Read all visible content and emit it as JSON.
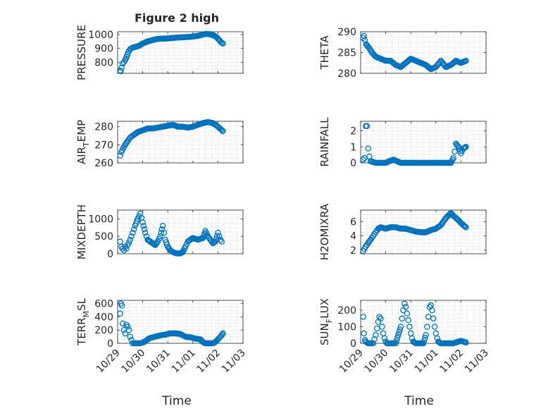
{
  "chart_data": {
    "type": "scatter",
    "title": "Figure 2 high",
    "xlabel": "Time",
    "x_tick_labels": [
      "10/29",
      "10/30",
      "10/31",
      "11/01",
      "11/02",
      "11/03"
    ],
    "xlim": [
      0,
      5
    ],
    "marker_color": "#0072bd",
    "panels": [
      {
        "id": "pressure",
        "ylabel": "PRESSURE",
        "ylabel_sub": "",
        "ylim": [
          720,
          1020
        ],
        "yticks": [
          "800",
          "900",
          "1000"
        ],
        "ytick_values": [
          800,
          900,
          1000
        ],
        "x": [
          0.1,
          0.12,
          0.16,
          0.2,
          0.25,
          0.3,
          0.36,
          0.42,
          0.5,
          0.6,
          0.7,
          0.85,
          1.0,
          1.2,
          1.4,
          1.6,
          1.8,
          2.0,
          2.2,
          2.4,
          2.6,
          2.8,
          3.0,
          3.2,
          3.4,
          3.55,
          3.65,
          3.75,
          3.85,
          3.95,
          4.05,
          4.12,
          4.2
        ],
        "y": [
          740,
          735,
          760,
          790,
          800,
          815,
          840,
          870,
          895,
          905,
          910,
          918,
          935,
          950,
          960,
          968,
          970,
          972,
          975,
          978,
          980,
          982,
          985,
          990,
          1000,
          1005,
          1003,
          998,
          992,
          980,
          960,
          945,
          935
        ]
      },
      {
        "id": "theta",
        "ylabel": "THETA",
        "ylabel_sub": "",
        "ylim": [
          280,
          290
        ],
        "yticks": [
          "280",
          "285",
          "290"
        ],
        "ytick_values": [
          280,
          285,
          290
        ],
        "x": [
          0.1,
          0.13,
          0.17,
          0.22,
          0.28,
          0.35,
          0.45,
          0.6,
          0.8,
          1.0,
          1.2,
          1.4,
          1.6,
          1.8,
          2.0,
          2.2,
          2.4,
          2.6,
          2.8,
          3.0,
          3.2,
          3.4,
          3.6,
          3.8,
          4.0,
          4.2
        ],
        "y": [
          288.5,
          289.0,
          288.0,
          287.0,
          286.5,
          286.0,
          285.0,
          284.0,
          283.5,
          283.0,
          283.0,
          282.0,
          281.5,
          282.5,
          283.5,
          283.0,
          282.5,
          282.0,
          281.0,
          281.5,
          283.0,
          281.5,
          282.0,
          283.0,
          282.5,
          283.0
        ]
      },
      {
        "id": "air_temp",
        "ylabel": "AIR",
        "ylabel_sub": "T",
        "ylabel_tail": "EMP",
        "ylim": [
          260,
          283
        ],
        "yticks": [
          "260",
          "270",
          "280"
        ],
        "ytick_values": [
          260,
          270,
          280
        ],
        "x": [
          0.1,
          0.15,
          0.22,
          0.3,
          0.4,
          0.5,
          0.6,
          0.8,
          1.0,
          1.2,
          1.4,
          1.6,
          1.8,
          2.0,
          2.2,
          2.4,
          2.6,
          2.8,
          3.0,
          3.2,
          3.4,
          3.6,
          3.8,
          4.0,
          4.2
        ],
        "y": [
          264,
          266,
          268,
          270,
          272,
          274,
          275,
          277,
          278,
          279,
          279,
          279.5,
          280,
          280.5,
          281,
          280,
          280,
          279.5,
          280,
          281,
          282,
          282.5,
          282,
          280,
          277.5
        ]
      },
      {
        "id": "rainfall",
        "ylabel": "RAINFALL",
        "ylabel_sub": "",
        "ylim": [
          0,
          2.6
        ],
        "yticks": [
          "0",
          "1",
          "2"
        ],
        "ytick_values": [
          0,
          1,
          2
        ],
        "x": [
          0.1,
          0.15,
          0.2,
          0.25,
          0.3,
          0.35,
          0.4,
          0.6,
          0.8,
          1.0,
          1.3,
          1.6,
          1.9,
          2.2,
          2.5,
          2.8,
          3.1,
          3.4,
          3.6,
          3.7,
          3.75,
          3.8,
          3.9,
          4.0,
          4.1,
          4.2
        ],
        "y": [
          0.2,
          0.3,
          2.3,
          2.3,
          0.9,
          0.4,
          0.1,
          0.0,
          0.0,
          0.0,
          0.2,
          0.0,
          0.0,
          0.0,
          0.0,
          0.0,
          0.0,
          0.0,
          0.0,
          0.3,
          0.7,
          1.2,
          1.0,
          0.6,
          0.9,
          1.0
        ]
      },
      {
        "id": "mixdepth",
        "ylabel": "MIXDEPTH",
        "ylabel_sub": "",
        "ylim": [
          0,
          1250
        ],
        "yticks": [
          "0",
          "500",
          "1000"
        ],
        "ytick_values": [
          0,
          500,
          1000
        ],
        "x": [
          0.1,
          0.15,
          0.2,
          0.25,
          0.3,
          0.35,
          0.4,
          0.5,
          0.6,
          0.7,
          0.8,
          0.9,
          1.0,
          1.1,
          1.2,
          1.3,
          1.4,
          1.5,
          1.6,
          1.7,
          1.8,
          1.9,
          2.0,
          2.1,
          2.2,
          2.3,
          2.4,
          2.5,
          2.6,
          2.7,
          2.8,
          3.0,
          3.2,
          3.4,
          3.5,
          3.6,
          3.7,
          3.8,
          3.9,
          4.0,
          4.1,
          4.15
        ],
        "y": [
          350,
          200,
          150,
          100,
          200,
          150,
          250,
          400,
          600,
          800,
          1000,
          1150,
          900,
          600,
          400,
          350,
          300,
          250,
          350,
          500,
          800,
          400,
          200,
          100,
          50,
          20,
          10,
          10,
          50,
          200,
          350,
          450,
          400,
          450,
          650,
          500,
          400,
          300,
          350,
          600,
          400,
          350
        ]
      },
      {
        "id": "h2omixra",
        "ylabel": "H2OMIXRA",
        "ylabel_sub": "",
        "ylim": [
          1.5,
          7.6
        ],
        "yticks": [
          "2",
          "4",
          "6"
        ],
        "ytick_values": [
          2,
          4,
          6
        ],
        "x": [
          0.1,
          0.15,
          0.2,
          0.3,
          0.4,
          0.5,
          0.6,
          0.7,
          0.8,
          1.0,
          1.2,
          1.4,
          1.6,
          1.8,
          2.0,
          2.2,
          2.4,
          2.6,
          2.8,
          3.0,
          3.2,
          3.4,
          3.6,
          3.7,
          3.8,
          3.9,
          4.0,
          4.1,
          4.2
        ],
        "y": [
          1.9,
          2.2,
          2.5,
          3.0,
          3.5,
          4.0,
          4.5,
          5.0,
          5.2,
          5.0,
          5.2,
          5.2,
          5.0,
          5.0,
          4.8,
          4.6,
          4.5,
          4.5,
          4.8,
          5.0,
          5.5,
          6.5,
          7.2,
          6.8,
          6.5,
          6.2,
          5.8,
          5.5,
          5.2
        ]
      },
      {
        "id": "terr_msl",
        "ylabel": "TERR",
        "ylabel_sub": "M",
        "ylabel_tail": "SL",
        "ylim": [
          0,
          650
        ],
        "yticks": [
          "0",
          "200",
          "400",
          "600"
        ],
        "ytick_values": [
          0,
          200,
          400,
          600
        ],
        "x": [
          0.1,
          0.13,
          0.17,
          0.2,
          0.25,
          0.3,
          0.35,
          0.4,
          0.45,
          0.5,
          0.55,
          0.6,
          0.7,
          0.8,
          0.9,
          1.0,
          1.1,
          1.2,
          1.3,
          1.5,
          1.7,
          1.9,
          2.1,
          2.3,
          2.5,
          2.7,
          2.9,
          3.1,
          3.3,
          3.4,
          3.5,
          3.6,
          3.7,
          3.8,
          3.9,
          4.0,
          4.1,
          4.2
        ],
        "y": [
          450,
          600,
          570,
          300,
          200,
          150,
          280,
          250,
          200,
          100,
          50,
          0,
          0,
          0,
          0,
          10,
          30,
          60,
          80,
          100,
          120,
          130,
          150,
          150,
          140,
          100,
          90,
          70,
          60,
          20,
          0,
          0,
          0,
          0,
          20,
          60,
          100,
          150
        ]
      },
      {
        "id": "sun_flux",
        "ylabel": "SUN",
        "ylabel_sub": "F",
        "ylabel_tail": "LUX",
        "ylim": [
          0,
          260
        ],
        "yticks": [
          "0",
          "100",
          "200"
        ],
        "ytick_values": [
          0,
          100,
          200
        ],
        "x": [
          0.1,
          0.13,
          0.17,
          0.2,
          0.25,
          0.3,
          0.4,
          0.5,
          0.6,
          0.65,
          0.7,
          0.75,
          0.8,
          0.85,
          0.9,
          0.95,
          1.0,
          1.05,
          1.1,
          1.15,
          1.2,
          1.3,
          1.4,
          1.5,
          1.6,
          1.65,
          1.7,
          1.75,
          1.8,
          1.85,
          1.9,
          1.95,
          2.0,
          2.05,
          2.1,
          2.2,
          2.3,
          2.4,
          2.5,
          2.6,
          2.65,
          2.7,
          2.75,
          2.8,
          2.85,
          2.9,
          2.95,
          3.0,
          3.05,
          3.1,
          3.2,
          3.3,
          3.4,
          3.5,
          3.6,
          3.7,
          3.8,
          3.9,
          4.0,
          4.1,
          4.2
        ],
        "y": [
          160,
          60,
          20,
          10,
          5,
          0,
          0,
          0,
          50,
          90,
          130,
          160,
          150,
          100,
          60,
          30,
          10,
          0,
          0,
          0,
          0,
          0,
          0,
          50,
          100,
          150,
          200,
          240,
          220,
          180,
          140,
          100,
          60,
          30,
          10,
          0,
          0,
          0,
          0,
          50,
          100,
          160,
          220,
          230,
          200,
          150,
          100,
          60,
          30,
          10,
          0,
          0,
          0,
          0,
          0,
          0,
          5,
          10,
          15,
          10,
          5
        ]
      }
    ]
  }
}
